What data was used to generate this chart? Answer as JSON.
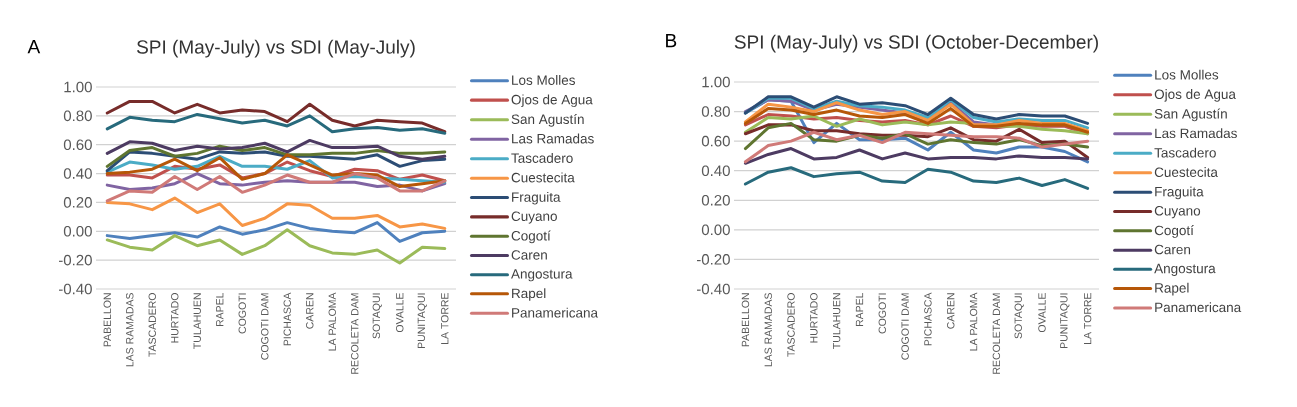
{
  "chart_data": [
    {
      "type": "line",
      "title": "SPI (May-July) vs SDI (May-July)",
      "annotations": [
        "A"
      ],
      "categories": [
        "PABELLON",
        "LAS RAMADAS",
        "TASCADERO",
        "HURTADO",
        "TULAHUEN",
        "RAPEL",
        "COGOTI",
        "COGOTI DAM",
        "PICHASCA",
        "CAREN",
        "LA PALOMA",
        "RECOLETA DAM",
        "SOTAQUI",
        "OVALLE",
        "PUNITAQUI",
        "LA TORRE"
      ],
      "ylim": [
        -0.4,
        1.0
      ],
      "yticks": [
        {
          "value": -0.4,
          "label": "-0.40"
        },
        {
          "value": -0.2,
          "label": "-0.20"
        },
        {
          "value": 0,
          "label": "0.00"
        },
        {
          "value": 0.2,
          "label": "0.20"
        },
        {
          "value": 0.4,
          "label": "0.40"
        },
        {
          "value": 0.6,
          "label": "0.60"
        },
        {
          "value": 0.8,
          "label": "0.80"
        },
        {
          "value": 1.0,
          "label": "1.00"
        }
      ],
      "grid": "y",
      "legend": "right",
      "series": [
        {
          "name": "Los Molles",
          "color": "#4f81bd",
          "values": [
            -0.03,
            -0.05,
            -0.03,
            -0.01,
            -0.04,
            0.03,
            -0.02,
            0.01,
            0.06,
            0.02,
            0.0,
            -0.01,
            0.06,
            -0.07,
            -0.01,
            0.0
          ]
        },
        {
          "name": "Ojos de Agua",
          "color": "#c0504d",
          "values": [
            0.39,
            0.39,
            0.37,
            0.45,
            0.43,
            0.46,
            0.37,
            0.4,
            0.48,
            0.42,
            0.38,
            0.43,
            0.42,
            0.36,
            0.39,
            0.35
          ]
        },
        {
          "name": "San Agustín",
          "color": "#9bbb59",
          "values": [
            -0.06,
            -0.11,
            -0.13,
            -0.03,
            -0.1,
            -0.06,
            -0.16,
            -0.1,
            0.01,
            -0.1,
            -0.15,
            -0.16,
            -0.13,
            -0.22,
            -0.11,
            -0.12
          ]
        },
        {
          "name": "Las Ramadas",
          "color": "#8064a2",
          "values": [
            0.32,
            0.29,
            0.3,
            0.33,
            0.4,
            0.33,
            0.32,
            0.34,
            0.35,
            0.34,
            0.34,
            0.34,
            0.31,
            0.32,
            0.28,
            0.33
          ]
        },
        {
          "name": "Tascadero",
          "color": "#4bacc6",
          "values": [
            0.41,
            0.48,
            0.46,
            0.43,
            0.45,
            0.52,
            0.45,
            0.45,
            0.43,
            0.49,
            0.37,
            0.38,
            null,
            0.36,
            0.35,
            0.34
          ]
        },
        {
          "name": "Cuestecita",
          "color": "#f79646",
          "values": [
            0.2,
            0.19,
            0.15,
            0.23,
            0.13,
            0.19,
            0.04,
            0.09,
            0.19,
            0.18,
            0.09,
            0.09,
            0.11,
            0.03,
            0.05,
            0.02
          ]
        },
        {
          "name": "Fraguita",
          "color": "#2c4d75",
          "values": [
            0.42,
            0.55,
            0.54,
            0.52,
            0.5,
            0.55,
            0.54,
            0.55,
            0.52,
            0.52,
            0.51,
            0.5,
            0.53,
            0.45,
            0.49,
            0.5
          ]
        },
        {
          "name": "Cuyano",
          "color": "#772c2a",
          "values": [
            0.82,
            0.9,
            0.9,
            0.82,
            0.88,
            0.82,
            0.84,
            0.83,
            0.76,
            0.88,
            0.77,
            0.73,
            0.77,
            0.76,
            0.75,
            0.69
          ]
        },
        {
          "name": "Cogotí",
          "color": "#5f7530",
          "values": [
            0.45,
            0.56,
            0.58,
            0.52,
            0.54,
            0.59,
            0.56,
            0.58,
            0.53,
            0.53,
            0.54,
            0.54,
            0.56,
            0.54,
            0.54,
            0.55
          ]
        },
        {
          "name": "Caren",
          "color": "#4d3b62",
          "values": [
            0.54,
            0.62,
            0.61,
            0.56,
            0.59,
            0.57,
            0.58,
            0.61,
            0.55,
            0.63,
            0.58,
            0.58,
            0.59,
            0.52,
            0.5,
            0.52
          ]
        },
        {
          "name": "Angostura",
          "color": "#276a7c",
          "values": [
            0.71,
            0.79,
            0.77,
            0.76,
            0.81,
            0.78,
            0.75,
            0.77,
            0.73,
            0.8,
            0.69,
            0.71,
            0.72,
            0.7,
            0.71,
            0.68
          ]
        },
        {
          "name": "Rapel",
          "color": "#b65708",
          "values": [
            0.4,
            0.41,
            0.43,
            0.5,
            0.42,
            0.51,
            0.36,
            0.4,
            0.53,
            0.46,
            0.39,
            0.4,
            0.39,
            0.31,
            0.33,
            0.35
          ]
        },
        {
          "name": "Panamericana",
          "color": "#d07a78",
          "values": [
            0.21,
            0.28,
            0.27,
            0.38,
            0.29,
            0.38,
            0.27,
            0.32,
            0.39,
            0.34,
            0.34,
            0.4,
            0.37,
            0.28,
            0.28,
            0.35
          ]
        }
      ]
    },
    {
      "type": "line",
      "title": "SPI (May-July) vs SDI (October-December)",
      "annotations": [
        "B"
      ],
      "categories": [
        "PABELLON",
        "LAS RAMADAS",
        "TASCADERO",
        "HURTADO",
        "TULAHUEN",
        "RAPEL",
        "COGOTI",
        "COGOTI DAM",
        "PICHASCA",
        "CAREN",
        "LA PALOMA",
        "RECOLETA DAM",
        "SOTAQUI",
        "OVALLE",
        "PUNITAQUI",
        "LA TORRE"
      ],
      "ylim": [
        -0.4,
        1.0
      ],
      "yticks": [
        {
          "value": -0.4,
          "label": "-0.40"
        },
        {
          "value": -0.2,
          "label": "-0.20"
        },
        {
          "value": 0,
          "label": "0.00"
        },
        {
          "value": 0.2,
          "label": "0.20"
        },
        {
          "value": 0.4,
          "label": "0.40"
        },
        {
          "value": 0.6,
          "label": "0.60"
        },
        {
          "value": 0.8,
          "label": "0.80"
        },
        {
          "value": 1.0,
          "label": "1.00"
        }
      ],
      "grid": "y",
      "legend": "right",
      "series": [
        {
          "name": "Los Molles",
          "color": "#4f81bd",
          "values": [
            0.79,
            0.88,
            0.87,
            0.59,
            0.72,
            0.61,
            0.61,
            0.62,
            0.54,
            0.66,
            0.54,
            0.52,
            0.56,
            0.56,
            0.53,
            0.46
          ]
        },
        {
          "name": "Ojos de Agua",
          "color": "#c0504d",
          "values": [
            0.71,
            0.78,
            0.77,
            0.75,
            0.76,
            0.74,
            0.73,
            0.74,
            0.71,
            0.77,
            0.7,
            0.69,
            0.71,
            0.7,
            0.7,
            0.65
          ]
        },
        {
          "name": "San Agustín",
          "color": "#9bbb59",
          "values": [
            0.66,
            0.76,
            0.75,
            0.77,
            0.7,
            0.75,
            0.71,
            0.73,
            0.71,
            0.73,
            0.72,
            0.7,
            0.7,
            0.68,
            0.67,
            0.65
          ]
        },
        {
          "name": "Las Ramadas",
          "color": "#8064a2",
          "values": [
            0.8,
            0.88,
            0.87,
            0.81,
            0.85,
            0.83,
            0.81,
            0.79,
            0.74,
            0.86,
            0.73,
            0.71,
            0.73,
            null,
            null,
            null
          ]
        },
        {
          "name": "Tascadero",
          "color": "#4bacc6",
          "values": [
            0.79,
            0.89,
            0.89,
            0.82,
            0.87,
            0.84,
            0.83,
            0.81,
            0.76,
            0.88,
            0.76,
            0.73,
            0.75,
            0.74,
            0.74,
            0.69
          ]
        },
        {
          "name": "Cuestecita",
          "color": "#f79646",
          "values": [
            0.73,
            0.85,
            0.83,
            0.8,
            0.86,
            0.81,
            0.78,
            0.8,
            0.74,
            0.85,
            0.71,
            0.71,
            0.74,
            0.72,
            0.72,
            0.67
          ]
        },
        {
          "name": "Fraguita",
          "color": "#2c4d75",
          "values": [
            0.79,
            0.9,
            0.9,
            0.83,
            0.9,
            0.85,
            0.86,
            0.84,
            0.78,
            0.89,
            0.78,
            0.75,
            0.78,
            0.77,
            0.77,
            0.72
          ]
        },
        {
          "name": "Cuyano",
          "color": "#772c2a",
          "values": [
            0.65,
            0.71,
            0.71,
            0.67,
            0.67,
            0.65,
            0.64,
            0.64,
            0.63,
            0.69,
            0.61,
            0.6,
            0.68,
            0.59,
            0.6,
            0.49
          ]
        },
        {
          "name": "Cogotí",
          "color": "#5f7530",
          "values": [
            0.55,
            0.69,
            0.72,
            0.61,
            0.6,
            0.64,
            0.62,
            0.65,
            0.58,
            0.61,
            0.59,
            0.58,
            0.61,
            0.57,
            0.58,
            0.56
          ]
        },
        {
          "name": "Caren",
          "color": "#4d3b62",
          "values": [
            0.45,
            0.51,
            0.55,
            0.48,
            0.49,
            0.54,
            0.48,
            0.52,
            0.48,
            0.49,
            0.49,
            0.48,
            0.5,
            0.49,
            0.49,
            0.48
          ]
        },
        {
          "name": "Angostura",
          "color": "#276a7c",
          "values": [
            0.31,
            0.39,
            0.42,
            0.36,
            0.38,
            0.39,
            0.33,
            0.32,
            0.41,
            0.39,
            0.33,
            0.32,
            0.35,
            0.3,
            0.34,
            0.28
          ]
        },
        {
          "name": "Rapel",
          "color": "#b65708",
          "values": [
            0.72,
            0.82,
            0.81,
            0.78,
            0.81,
            0.77,
            0.76,
            0.78,
            0.72,
            0.82,
            0.7,
            0.7,
            0.72,
            0.71,
            0.71,
            0.66
          ]
        },
        {
          "name": "Panamericana",
          "color": "#d07a78",
          "values": [
            0.46,
            0.57,
            0.6,
            0.66,
            0.61,
            0.64,
            0.59,
            0.66,
            0.65,
            0.64,
            0.63,
            0.63,
            0.62,
            0.56,
            0.58,
            0.6
          ]
        }
      ]
    }
  ]
}
